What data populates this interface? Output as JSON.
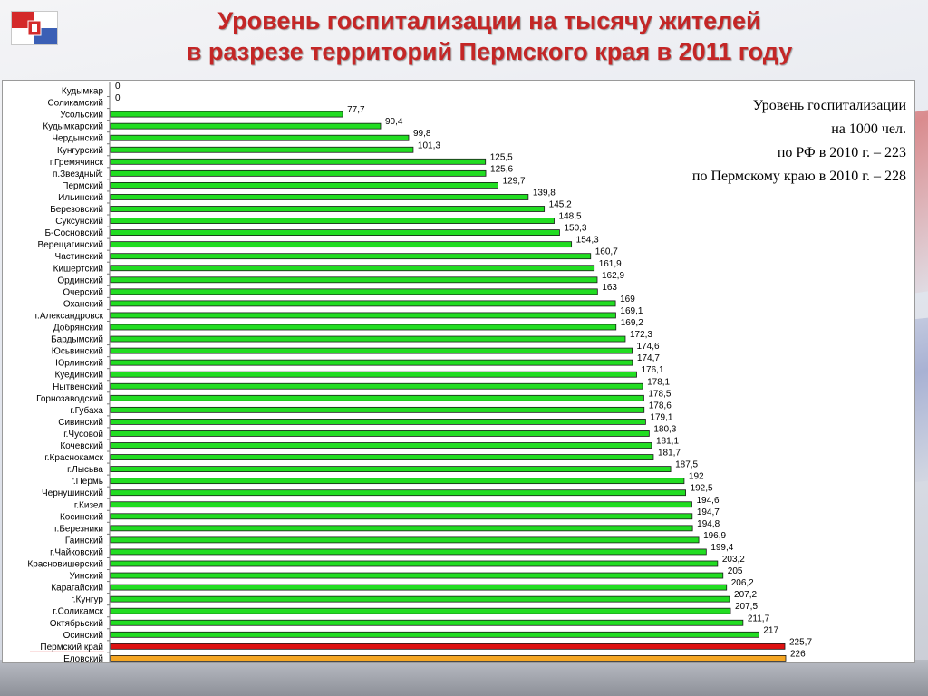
{
  "title": {
    "line1": "Уровень госпитализации на тысячу жителей",
    "line2": "в разрезе территорий Пермского края в 2011 году"
  },
  "note": {
    "line1": "Уровень госпитализации",
    "line2": "на 1000 чел.",
    "line3": "по РФ в 2010 г. – 223",
    "line4": "по Пермскому краю в 2010 г. – 228"
  },
  "colors": {
    "title": "#c42626",
    "bar_default": "#22dd22",
    "bar_highlight": "#dd1111",
    "bar_last": "#f5a623"
  },
  "chart_data": {
    "type": "bar",
    "orientation": "horizontal",
    "xlim": [
      0,
      226
    ],
    "grid": false,
    "categories": [
      "Кудымкар",
      "Соликамский",
      "Усольский",
      "Кудымкарский",
      "Чердынский",
      "Кунгурский",
      "г.Гремячинск",
      "п.Звездный:",
      "Пермский",
      "Ильинский",
      "Березовский",
      "Суксунский",
      "Б-Сосновский",
      "Верещагинский",
      "Частинский",
      "Кишертский",
      "Ординский",
      "Очерский",
      "Оханский",
      "г.Александровск",
      "Добрянский",
      "Бардымский",
      "Юсьвинский",
      "Юрлинский",
      "Куединский",
      "Нытвенский",
      "Горнозаводский",
      "г.Губаха",
      "Сивинский",
      "г.Чусовой",
      "Кочевский",
      "г.Краснокамск",
      "г.Лысьва",
      "г.Пермь",
      "Чернушинский",
      "г.Кизел",
      "Косинский",
      "г.Березники",
      "Гаинский",
      "г.Чайковский",
      "Красновишерский",
      "Уинский",
      "Карагайский",
      "г.Кунгур",
      "г.Соликамск",
      "Октябрьский",
      "Осинский",
      "Пермский край",
      "Еловский"
    ],
    "values": [
      0,
      0,
      77.7,
      90.4,
      99.8,
      101.3,
      125.5,
      125.6,
      129.7,
      139.8,
      145.2,
      148.5,
      150.3,
      154.3,
      160.7,
      161.9,
      162.9,
      163,
      169,
      169.1,
      169.2,
      172.3,
      174.6,
      174.7,
      176.1,
      178.1,
      178.5,
      178.6,
      179.1,
      180.3,
      181.1,
      181.7,
      187.5,
      192,
      192.5,
      194.6,
      194.7,
      194.8,
      196.9,
      199.4,
      203.2,
      205,
      206.2,
      207.2,
      207.5,
      211.7,
      217,
      225.7,
      226
    ],
    "value_labels": [
      "0",
      "0",
      "77,7",
      "90,4",
      "99,8",
      "101,3",
      "125,5",
      "125,6",
      "129,7",
      "139,8",
      "145,2",
      "148,5",
      "150,3",
      "154,3",
      "160,7",
      "161,9",
      "162,9",
      "163",
      "169",
      "169,1",
      "169,2",
      "172,3",
      "174,6",
      "174,7",
      "176,1",
      "178,1",
      "178,5",
      "178,6",
      "179,1",
      "180,3",
      "181,1",
      "181,7",
      "187,5",
      "192",
      "192,5",
      "194,6",
      "194,7",
      "194,8",
      "196,9",
      "199,4",
      "203,2",
      "205",
      "206,2",
      "207,2",
      "207,5",
      "211,7",
      "217",
      "225,7",
      "226"
    ],
    "highlight_index": 47,
    "last_index": 48
  }
}
